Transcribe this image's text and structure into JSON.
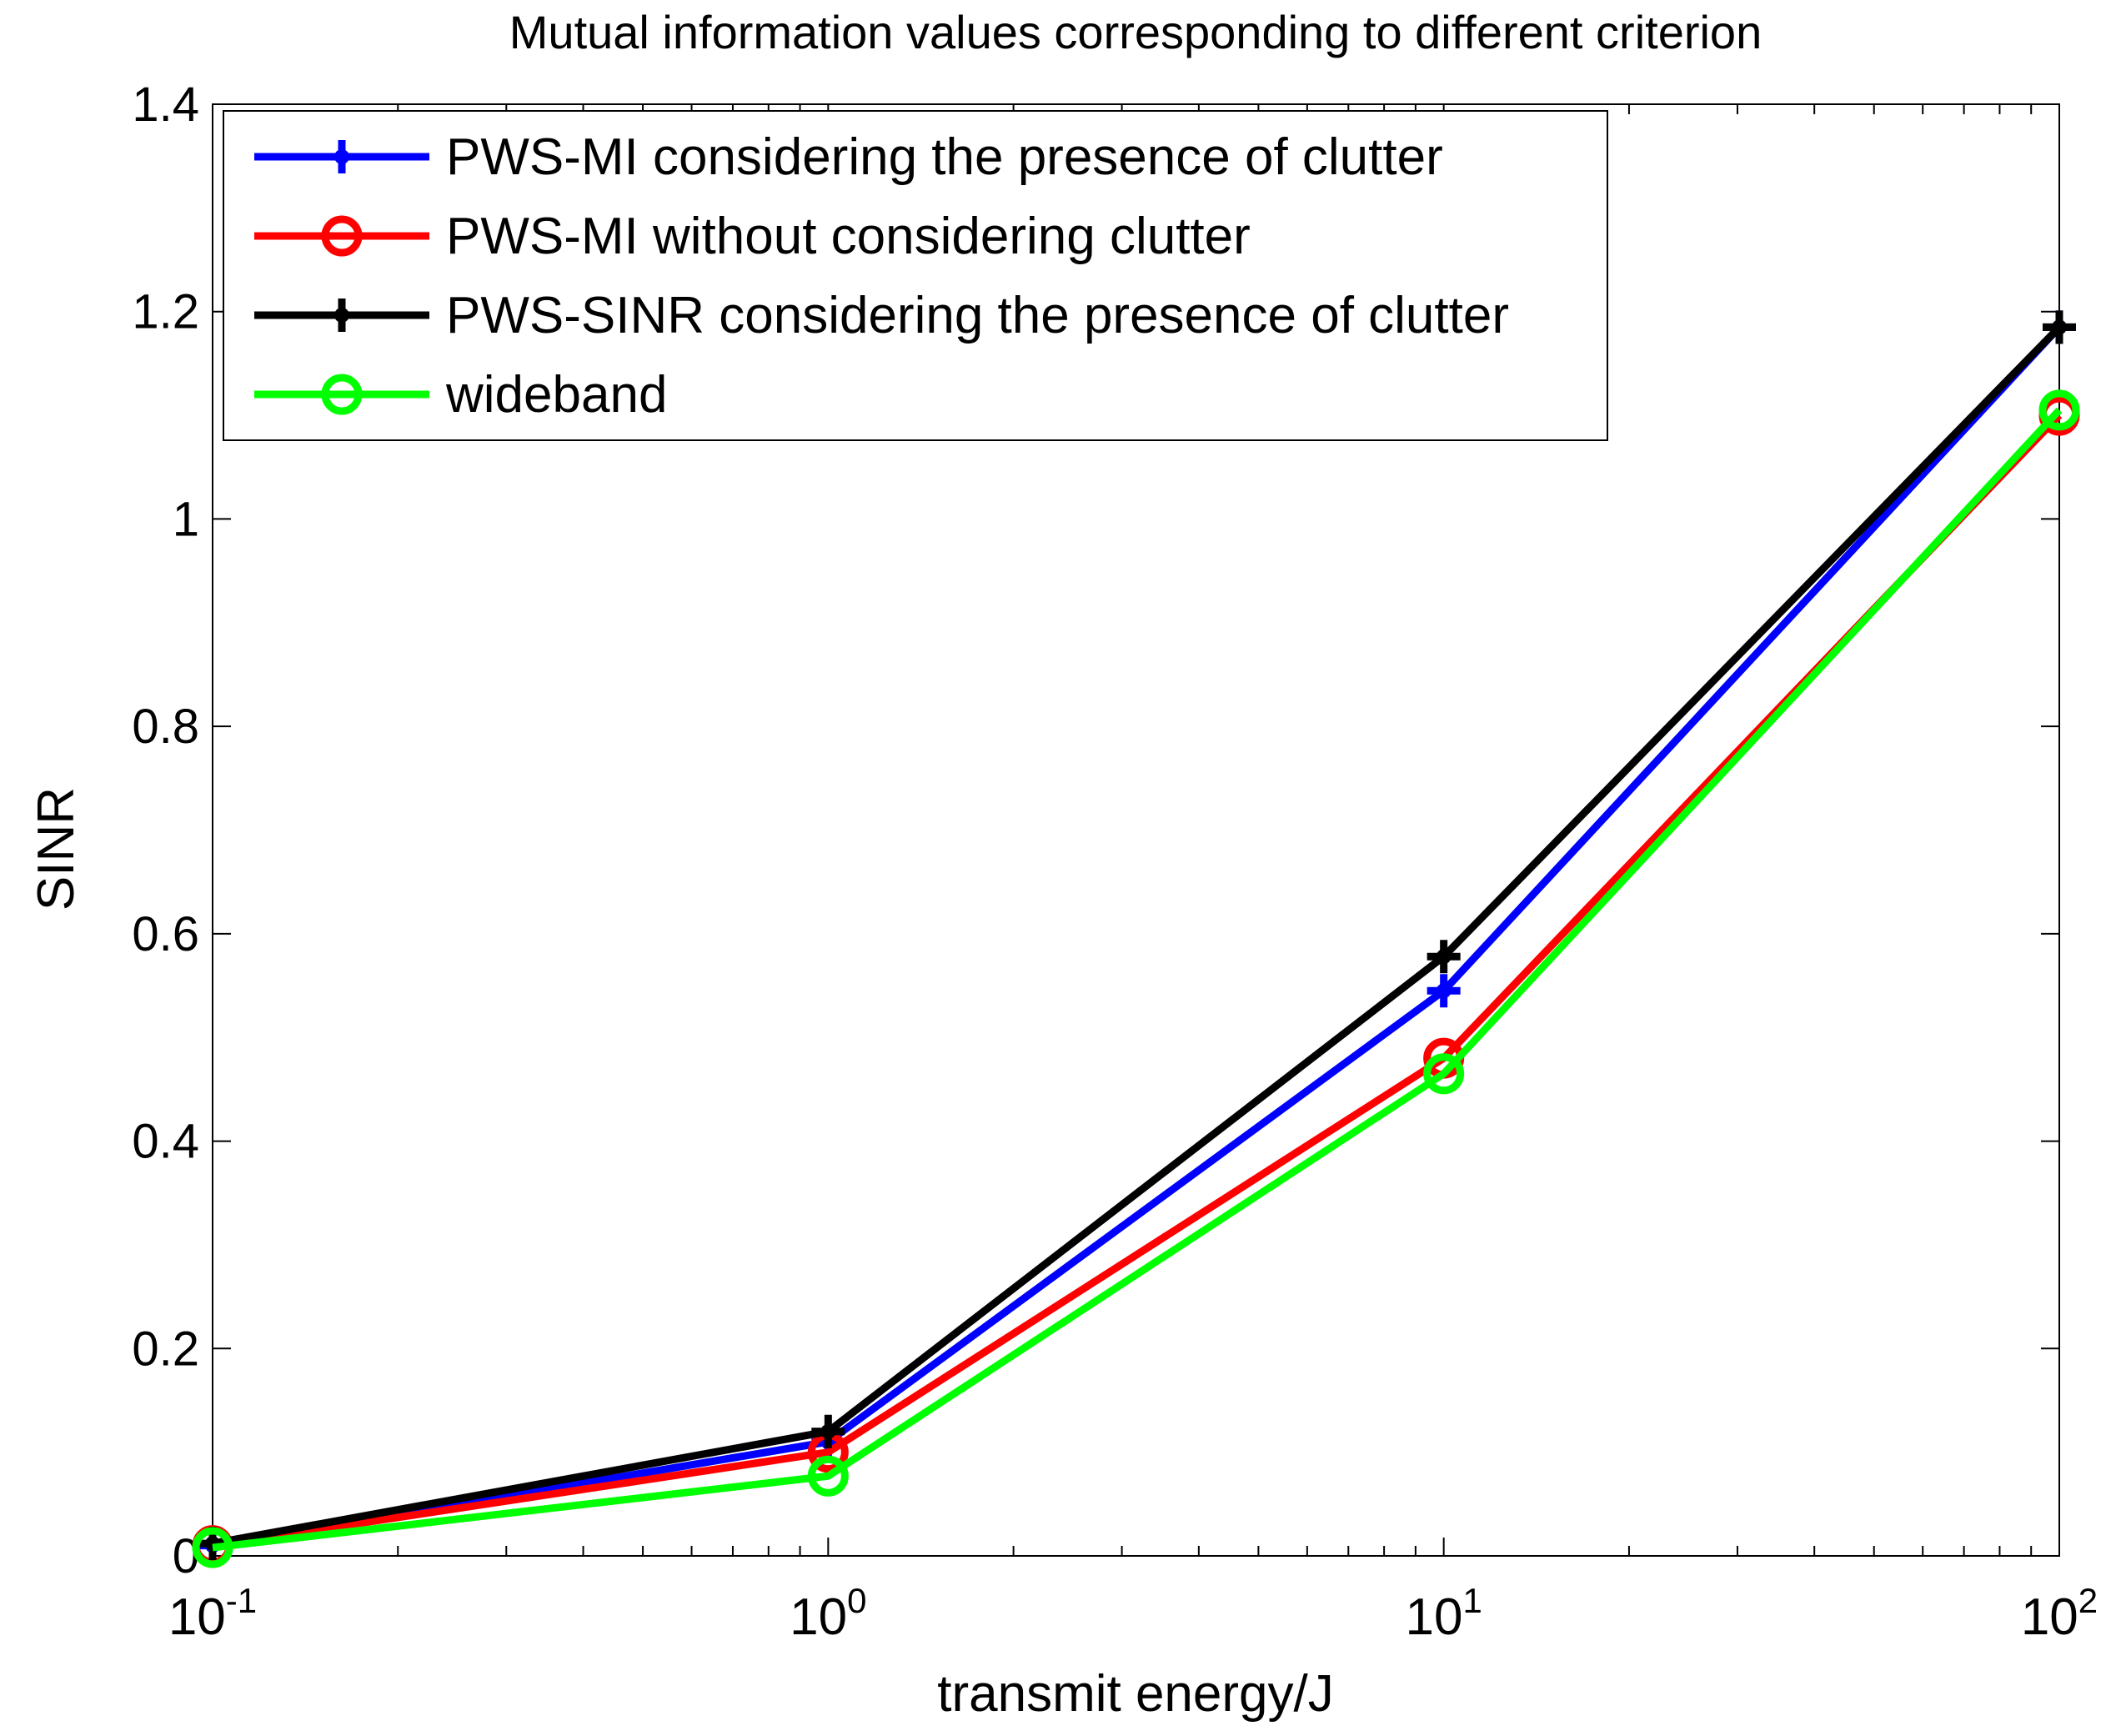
{
  "chart_data": {
    "type": "line",
    "title": "Mutual information values corresponding to different criterion",
    "xlabel": "transmit energy/J",
    "ylabel": "SINR",
    "xscale": "log",
    "xlim": [
      0.1,
      100
    ],
    "ylim": [
      0,
      1.4
    ],
    "x_ticks": [
      {
        "value": 0.1,
        "base": "10",
        "exp": "-1"
      },
      {
        "value": 1,
        "base": "10",
        "exp": "0"
      },
      {
        "value": 10,
        "base": "10",
        "exp": "1"
      },
      {
        "value": 100,
        "base": "10",
        "exp": "2"
      }
    ],
    "y_ticks": [
      {
        "value": 0,
        "label": "0"
      },
      {
        "value": 0.2,
        "label": "0.2"
      },
      {
        "value": 0.4,
        "label": "0.4"
      },
      {
        "value": 0.6,
        "label": "0.6"
      },
      {
        "value": 0.8,
        "label": "0.8"
      },
      {
        "value": 1.0,
        "label": "1"
      },
      {
        "value": 1.2,
        "label": "1.2"
      },
      {
        "value": 1.4,
        "label": "1.4"
      }
    ],
    "grid": false,
    "legend_position": "top-left",
    "x": [
      0.1,
      1,
      10,
      100
    ],
    "series": [
      {
        "name": "PWS-MI considering the presence of clutter",
        "color": "#0000ff",
        "marker": "plus",
        "values": [
          0.01,
          0.11,
          0.545,
          1.185
        ]
      },
      {
        "name": "PWS-MI without considering clutter",
        "color": "#ff0000",
        "marker": "circle",
        "values": [
          0.01,
          0.1,
          0.48,
          1.1
        ]
      },
      {
        "name": "PWS-SINR considering the presence of clutter",
        "color": "#000000",
        "marker": "plus",
        "values": [
          0.012,
          0.12,
          0.578,
          1.185
        ]
      },
      {
        "name": "wideband",
        "color": "#00ff00",
        "marker": "circle",
        "values": [
          0.008,
          0.077,
          0.465,
          1.105
        ]
      }
    ]
  }
}
